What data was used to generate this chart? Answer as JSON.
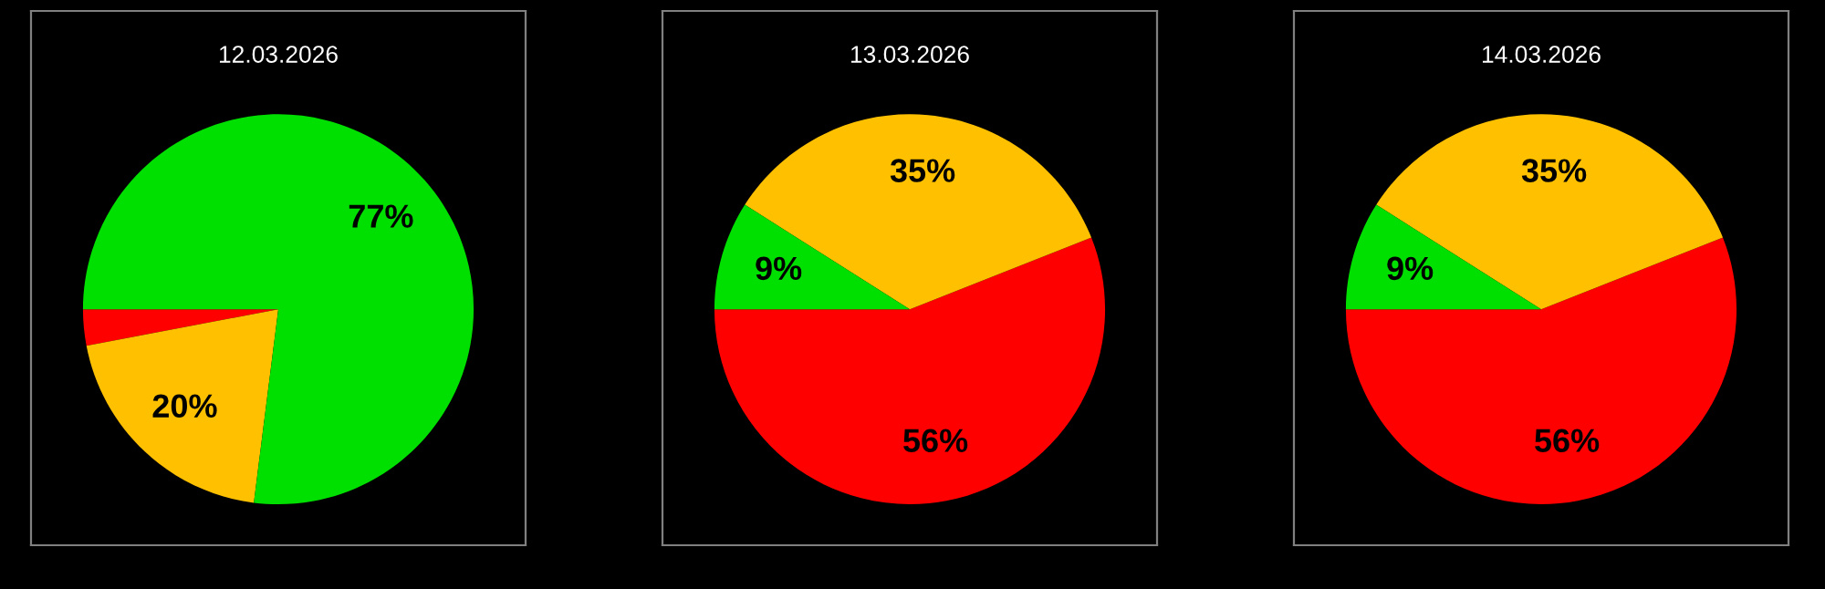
{
  "chart_data": [
    {
      "type": "pie",
      "title": "12.03.2026",
      "categories": [
        null,
        null,
        null
      ],
      "values": [
        3,
        20,
        77
      ],
      "colors": [
        "#ff0000",
        "#ffc000",
        "#00e000"
      ],
      "value_labels": [
        null,
        "20%",
        "77%"
      ]
    },
    {
      "type": "pie",
      "title": "13.03.2026",
      "categories": [
        null,
        null,
        null
      ],
      "values": [
        56,
        35,
        9
      ],
      "colors": [
        "#ff0000",
        "#ffc000",
        "#00e000"
      ],
      "value_labels": [
        "56%",
        "35%",
        "9%"
      ]
    },
    {
      "type": "pie",
      "title": "14.03.2026",
      "categories": [
        null,
        null,
        null
      ],
      "values": [
        56,
        35,
        9
      ],
      "colors": [
        "#ff0000",
        "#ffc000",
        "#00e000"
      ],
      "value_labels": [
        "56%",
        "35%",
        "9%"
      ]
    }
  ]
}
